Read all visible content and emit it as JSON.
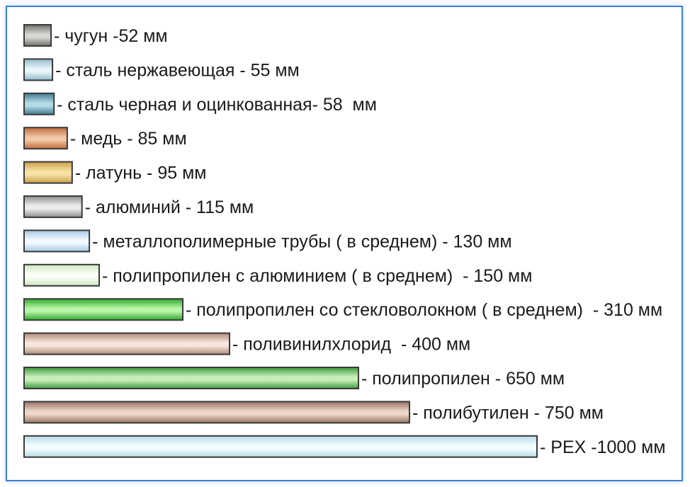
{
  "chart_data": {
    "type": "bar",
    "orientation": "horizontal",
    "title": "",
    "xlabel": "",
    "ylabel": "",
    "unit": "мм",
    "grid": false,
    "legend": "none",
    "xlim": [
      0,
      1000
    ],
    "categories": [
      "чугун",
      "сталь нержавеющая",
      "сталь черная и оцинкованная",
      "медь",
      "латунь",
      "алюминий",
      "металлополимерные трубы ( в среднем)",
      "полипропилен с алюминием ( в среднем)",
      "полипропилен со стекловолокном ( в среднем)",
      "поливинилхлорид",
      "полипропилен",
      "полибутилен",
      "PEX"
    ],
    "values": [
      52,
      55,
      58,
      85,
      95,
      115,
      130,
      150,
      310,
      400,
      650,
      750,
      1000
    ],
    "labels": [
      "- чугун -52 мм",
      "- сталь нержавеющая - 55 мм",
      "- сталь черная и оцинкованная- 58  мм",
      "- медь - 85 мм",
      "- латунь - 95 мм",
      "- алюминий - 115 мм",
      "- металлополимерные трубы ( в среднем) - 130 мм",
      "- полипропилен с алюминием ( в среднем)  - 150 мм",
      "- полипропилен со стекловолокном ( в среднем)  - 310 мм",
      "- поливинилхлорид  - 400 мм",
      "- полипропилен - 650 мм",
      "- полибутилен - 750 мм",
      "- PEX -1000 мм"
    ],
    "colors": [
      [
        "#6f6f6a",
        "#d8d8d2"
      ],
      [
        "#8fb9c9",
        "#e8f6fb"
      ],
      [
        "#3f7a8c",
        "#b4dbe6"
      ],
      [
        "#c06a3a",
        "#f2c7a6"
      ],
      [
        "#caa04a",
        "#f7e2a6"
      ],
      [
        "#8c8c8c",
        "#ececec"
      ],
      [
        "#a6c8e6",
        "#f3f9ff"
      ],
      [
        "#cde6c0",
        "#fbfff6"
      ],
      [
        "#2ea82e",
        "#b9f5a6"
      ],
      [
        "#b08a78",
        "#f6e6dc"
      ],
      [
        "#3c9a3c",
        "#c9efb9"
      ],
      [
        "#9a7462",
        "#ecd6ca"
      ],
      [
        "#b4dde6",
        "#f3fcff"
      ]
    ]
  }
}
